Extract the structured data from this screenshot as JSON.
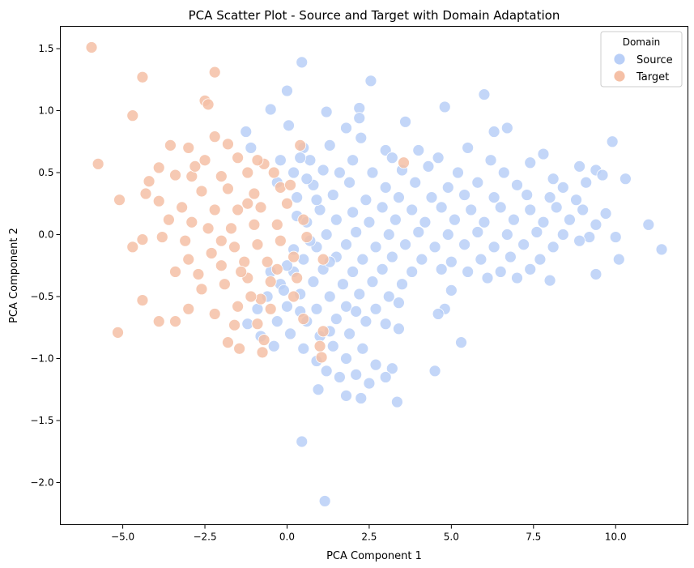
{
  "chart_data": {
    "type": "scatter",
    "title": "PCA Scatter Plot - Source and Target with Domain Adaptation",
    "xlabel": "PCA Component 1",
    "ylabel": "PCA Component 2",
    "xlim": [
      -6.9,
      12.2
    ],
    "ylim": [
      -2.34,
      1.68
    ],
    "xticks": [
      -5.0,
      -2.5,
      0.0,
      2.5,
      5.0,
      7.5,
      10.0
    ],
    "xtick_labels": [
      "−5.0",
      "−2.5",
      "0.0",
      "2.5",
      "5.0",
      "7.5",
      "10.0"
    ],
    "yticks": [
      -2.0,
      -1.5,
      -1.0,
      -0.5,
      0.0,
      0.5,
      1.0,
      1.5
    ],
    "ytick_labels": [
      "−2.0",
      "−1.5",
      "−1.0",
      "−0.5",
      "0.0",
      "0.5",
      "1.0",
      "1.5"
    ],
    "grid": false,
    "legend": {
      "title": "Domain",
      "placement": "top-right",
      "entries": [
        {
          "label": "Source",
          "color": "#b9cff7"
        },
        {
          "label": "Target",
          "color": "#f5c0a6"
        }
      ]
    },
    "series": [
      {
        "name": "Source",
        "color": "#b9cff7",
        "points": [
          [
            0.45,
            1.39
          ],
          [
            2.55,
            1.24
          ],
          [
            0.0,
            1.16
          ],
          [
            6.0,
            1.13
          ],
          [
            -0.5,
            1.01
          ],
          [
            4.8,
            1.03
          ],
          [
            2.2,
            1.02
          ],
          [
            1.2,
            0.99
          ],
          [
            0.05,
            0.88
          ],
          [
            2.2,
            0.94
          ],
          [
            3.6,
            0.91
          ],
          [
            1.8,
            0.86
          ],
          [
            6.7,
            0.86
          ],
          [
            6.3,
            0.83
          ],
          [
            9.9,
            0.75
          ],
          [
            -1.25,
            0.83
          ],
          [
            2.25,
            0.78
          ],
          [
            0.5,
            0.7
          ],
          [
            -1.1,
            0.7
          ],
          [
            1.3,
            0.72
          ],
          [
            3.0,
            0.68
          ],
          [
            4.0,
            0.68
          ],
          [
            5.5,
            0.7
          ],
          [
            7.8,
            0.65
          ],
          [
            0.7,
            0.6
          ],
          [
            2.0,
            0.6
          ],
          [
            3.2,
            0.62
          ],
          [
            4.6,
            0.62
          ],
          [
            6.2,
            0.6
          ],
          [
            7.4,
            0.58
          ],
          [
            8.9,
            0.55
          ],
          [
            9.4,
            0.52
          ],
          [
            0.2,
            0.5
          ],
          [
            1.1,
            0.52
          ],
          [
            2.6,
            0.5
          ],
          [
            3.5,
            0.52
          ],
          [
            4.3,
            0.55
          ],
          [
            5.2,
            0.5
          ],
          [
            6.6,
            0.5
          ],
          [
            8.1,
            0.45
          ],
          [
            9.6,
            0.48
          ],
          [
            -0.3,
            0.42
          ],
          [
            0.8,
            0.4
          ],
          [
            1.9,
            0.42
          ],
          [
            3.0,
            0.38
          ],
          [
            3.9,
            0.42
          ],
          [
            4.9,
            0.38
          ],
          [
            5.8,
            0.42
          ],
          [
            7.0,
            0.4
          ],
          [
            8.4,
            0.38
          ],
          [
            9.1,
            0.42
          ],
          [
            10.3,
            0.45
          ],
          [
            0.3,
            0.3
          ],
          [
            1.4,
            0.32
          ],
          [
            2.4,
            0.28
          ],
          [
            3.4,
            0.3
          ],
          [
            4.4,
            0.3
          ],
          [
            5.4,
            0.32
          ],
          [
            6.3,
            0.3
          ],
          [
            7.3,
            0.32
          ],
          [
            8.0,
            0.3
          ],
          [
            8.8,
            0.28
          ],
          [
            1.0,
            0.2
          ],
          [
            2.0,
            0.18
          ],
          [
            2.9,
            0.22
          ],
          [
            3.8,
            0.2
          ],
          [
            4.7,
            0.22
          ],
          [
            5.6,
            0.2
          ],
          [
            6.5,
            0.22
          ],
          [
            7.4,
            0.2
          ],
          [
            8.2,
            0.22
          ],
          [
            9.0,
            0.2
          ],
          [
            9.7,
            0.17
          ],
          [
            0.6,
            0.1
          ],
          [
            1.5,
            0.12
          ],
          [
            2.5,
            0.1
          ],
          [
            3.3,
            0.12
          ],
          [
            4.2,
            0.1
          ],
          [
            5.1,
            0.12
          ],
          [
            6.0,
            0.1
          ],
          [
            6.9,
            0.12
          ],
          [
            7.8,
            0.1
          ],
          [
            8.6,
            0.12
          ],
          [
            9.4,
            0.08
          ],
          [
            11.0,
            0.08
          ],
          [
            1.2,
            0.0
          ],
          [
            2.1,
            0.02
          ],
          [
            3.1,
            0.0
          ],
          [
            4.0,
            0.02
          ],
          [
            4.9,
            0.0
          ],
          [
            5.8,
            0.02
          ],
          [
            6.7,
            0.0
          ],
          [
            7.6,
            0.02
          ],
          [
            8.4,
            0.0
          ],
          [
            9.2,
            -0.02
          ],
          [
            10.0,
            -0.02
          ],
          [
            0.9,
            -0.1
          ],
          [
            1.8,
            -0.08
          ],
          [
            2.7,
            -0.1
          ],
          [
            3.6,
            -0.08
          ],
          [
            4.5,
            -0.1
          ],
          [
            5.4,
            -0.08
          ],
          [
            6.3,
            -0.1
          ],
          [
            7.2,
            -0.08
          ],
          [
            8.1,
            -0.1
          ],
          [
            8.9,
            -0.05
          ],
          [
            11.4,
            -0.12
          ],
          [
            0.5,
            -0.2
          ],
          [
            1.5,
            -0.18
          ],
          [
            2.3,
            -0.2
          ],
          [
            3.2,
            -0.18
          ],
          [
            4.1,
            -0.2
          ],
          [
            5.0,
            -0.22
          ],
          [
            5.9,
            -0.2
          ],
          [
            6.8,
            -0.18
          ],
          [
            7.7,
            -0.2
          ],
          [
            10.1,
            -0.2
          ],
          [
            0.2,
            -0.3
          ],
          [
            1.1,
            -0.28
          ],
          [
            2.0,
            -0.3
          ],
          [
            2.9,
            -0.28
          ],
          [
            3.8,
            -0.3
          ],
          [
            4.7,
            -0.28
          ],
          [
            5.5,
            -0.3
          ],
          [
            6.5,
            -0.3
          ],
          [
            7.4,
            -0.28
          ],
          [
            9.4,
            -0.32
          ],
          [
            -0.2,
            -0.4
          ],
          [
            0.8,
            -0.38
          ],
          [
            1.7,
            -0.4
          ],
          [
            2.6,
            -0.38
          ],
          [
            3.5,
            -0.4
          ],
          [
            6.1,
            -0.35
          ],
          [
            7.0,
            -0.35
          ],
          [
            8.0,
            -0.37
          ],
          [
            -0.6,
            -0.5
          ],
          [
            0.4,
            -0.48
          ],
          [
            1.3,
            -0.5
          ],
          [
            2.2,
            -0.48
          ],
          [
            3.1,
            -0.5
          ],
          [
            5.0,
            -0.45
          ],
          [
            -0.9,
            -0.6
          ],
          [
            0.0,
            -0.58
          ],
          [
            0.9,
            -0.6
          ],
          [
            1.8,
            -0.58
          ],
          [
            2.7,
            -0.6
          ],
          [
            3.4,
            -0.55
          ],
          [
            4.8,
            -0.6
          ],
          [
            4.6,
            -0.64
          ],
          [
            -1.2,
            -0.72
          ],
          [
            -0.3,
            -0.7
          ],
          [
            0.6,
            -0.7
          ],
          [
            1.5,
            -0.68
          ],
          [
            2.4,
            -0.7
          ],
          [
            3.0,
            -0.72
          ],
          [
            -0.8,
            -0.82
          ],
          [
            0.1,
            -0.8
          ],
          [
            1.0,
            -0.82
          ],
          [
            1.9,
            -0.8
          ],
          [
            3.4,
            -0.76
          ],
          [
            -0.4,
            -0.9
          ],
          [
            0.5,
            -0.92
          ],
          [
            1.4,
            -0.9
          ],
          [
            2.3,
            -0.92
          ],
          [
            5.3,
            -0.87
          ],
          [
            0.9,
            -1.02
          ],
          [
            1.8,
            -1.0
          ],
          [
            2.7,
            -1.05
          ],
          [
            1.2,
            -1.1
          ],
          [
            2.1,
            -1.13
          ],
          [
            3.2,
            -1.08
          ],
          [
            4.5,
            -1.1
          ],
          [
            1.6,
            -1.15
          ],
          [
            3.0,
            -1.15
          ],
          [
            0.95,
            -1.25
          ],
          [
            2.5,
            -1.2
          ],
          [
            1.8,
            -1.3
          ],
          [
            2.25,
            -1.32
          ],
          [
            3.35,
            -1.35
          ],
          [
            0.45,
            -1.67
          ],
          [
            1.15,
            -2.15
          ],
          [
            0.4,
            0.62
          ],
          [
            -0.2,
            0.6
          ],
          [
            1.6,
            0.5
          ],
          [
            0.9,
            0.28
          ],
          [
            0.3,
            0.15
          ],
          [
            0.7,
            -0.05
          ],
          [
            0.2,
            -0.12
          ],
          [
            1.3,
            -0.22
          ],
          [
            0.0,
            -0.25
          ],
          [
            0.4,
            -0.62
          ],
          [
            1.3,
            -0.78
          ],
          [
            2.1,
            -0.62
          ],
          [
            -0.5,
            -0.3
          ],
          [
            -0.1,
            -0.45
          ],
          [
            0.6,
            0.45
          ]
        ]
      },
      {
        "name": "Target",
        "color": "#f5c0a6",
        "points": [
          [
            -5.95,
            1.51
          ],
          [
            -4.4,
            1.27
          ],
          [
            -2.2,
            1.31
          ],
          [
            -4.7,
            0.96
          ],
          [
            -2.5,
            1.08
          ],
          [
            -2.4,
            1.05
          ],
          [
            -5.75,
            0.57
          ],
          [
            -3.55,
            0.72
          ],
          [
            -2.2,
            0.79
          ],
          [
            -1.8,
            0.73
          ],
          [
            -3.0,
            0.7
          ],
          [
            -4.2,
            0.43
          ],
          [
            -3.9,
            0.54
          ],
          [
            -2.5,
            0.6
          ],
          [
            -1.5,
            0.62
          ],
          [
            -0.7,
            0.57
          ],
          [
            0.4,
            0.72
          ],
          [
            3.55,
            0.58
          ],
          [
            -5.1,
            0.28
          ],
          [
            -4.3,
            0.33
          ],
          [
            -3.4,
            0.48
          ],
          [
            -2.9,
            0.47
          ],
          [
            -2.0,
            0.47
          ],
          [
            -1.2,
            0.5
          ],
          [
            -0.4,
            0.5
          ],
          [
            -3.9,
            0.27
          ],
          [
            -3.2,
            0.22
          ],
          [
            -2.6,
            0.35
          ],
          [
            -1.8,
            0.37
          ],
          [
            -1.0,
            0.33
          ],
          [
            -0.2,
            0.38
          ],
          [
            -3.6,
            0.12
          ],
          [
            -2.9,
            0.1
          ],
          [
            -2.2,
            0.2
          ],
          [
            -1.5,
            0.2
          ],
          [
            -0.8,
            0.22
          ],
          [
            0.0,
            0.25
          ],
          [
            -3.8,
            -0.02
          ],
          [
            -3.1,
            -0.05
          ],
          [
            -2.4,
            0.05
          ],
          [
            -1.7,
            0.05
          ],
          [
            -1.0,
            0.08
          ],
          [
            -0.3,
            0.08
          ],
          [
            0.5,
            0.12
          ],
          [
            -4.7,
            -0.1
          ],
          [
            -4.4,
            -0.04
          ],
          [
            -3.0,
            -0.2
          ],
          [
            -2.3,
            -0.15
          ],
          [
            -1.6,
            -0.1
          ],
          [
            -0.9,
            -0.08
          ],
          [
            -0.2,
            -0.05
          ],
          [
            0.6,
            -0.02
          ],
          [
            -3.4,
            -0.3
          ],
          [
            -2.7,
            -0.32
          ],
          [
            -2.0,
            -0.25
          ],
          [
            -1.3,
            -0.22
          ],
          [
            -0.6,
            -0.22
          ],
          [
            0.2,
            -0.18
          ],
          [
            1.1,
            -0.2
          ],
          [
            -2.6,
            -0.44
          ],
          [
            -1.9,
            -0.4
          ],
          [
            -1.2,
            -0.35
          ],
          [
            -0.5,
            -0.38
          ],
          [
            0.3,
            -0.35
          ],
          [
            -4.4,
            -0.53
          ],
          [
            -3.0,
            -0.6
          ],
          [
            -2.2,
            -0.64
          ],
          [
            -1.5,
            -0.58
          ],
          [
            -0.8,
            -0.52
          ],
          [
            0.2,
            -0.5
          ],
          [
            -3.4,
            -0.7
          ],
          [
            -3.9,
            -0.7
          ],
          [
            -5.15,
            -0.79
          ],
          [
            -1.6,
            -0.73
          ],
          [
            -0.9,
            -0.72
          ],
          [
            0.5,
            -0.68
          ],
          [
            -1.8,
            -0.87
          ],
          [
            -1.45,
            -0.92
          ],
          [
            -0.7,
            -0.85
          ],
          [
            -0.75,
            -0.95
          ],
          [
            1.1,
            -0.78
          ],
          [
            1.0,
            -0.9
          ],
          [
            1.05,
            -0.99
          ],
          [
            -1.2,
            0.25
          ],
          [
            -1.4,
            -0.3
          ],
          [
            -2.8,
            0.55
          ],
          [
            -0.9,
            0.6
          ],
          [
            0.1,
            0.4
          ],
          [
            -0.5,
            -0.6
          ],
          [
            -2.0,
            -0.05
          ],
          [
            -1.1,
            -0.5
          ],
          [
            -0.3,
            -0.28
          ]
        ]
      }
    ]
  }
}
